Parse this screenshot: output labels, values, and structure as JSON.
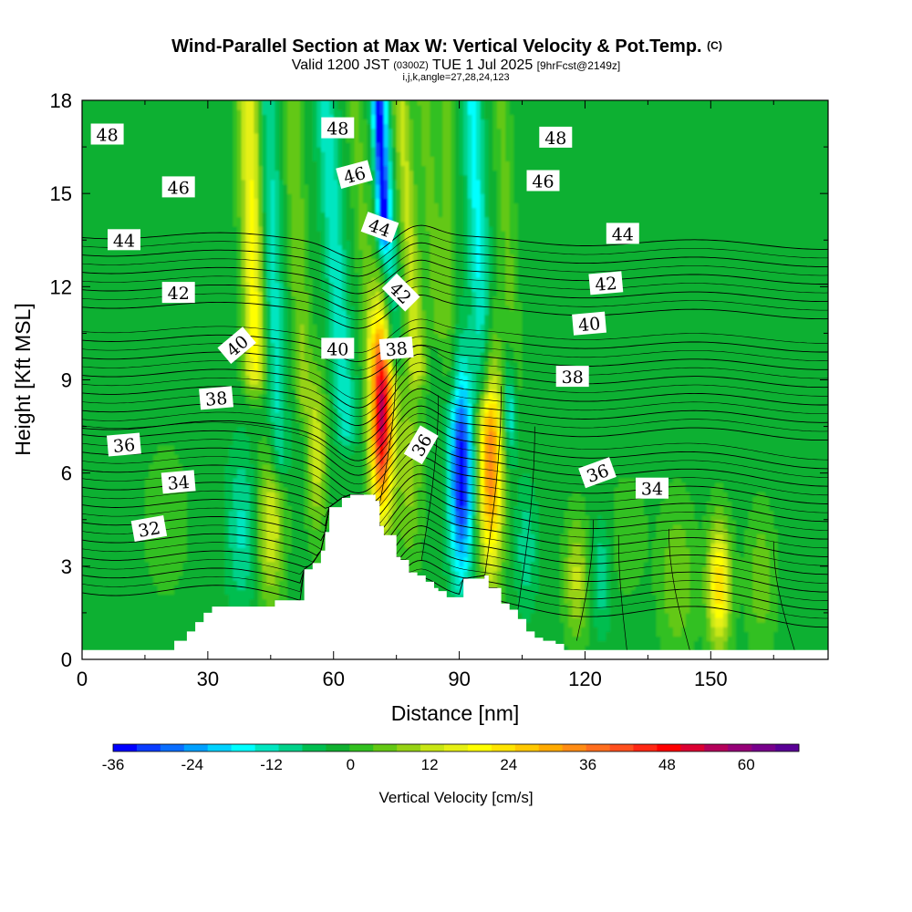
{
  "chart_data": {
    "type": "heatmap",
    "title": "Wind-Parallel Section at Max W: Vertical Velocity & Pot.Temp.",
    "title_mark": "(C)",
    "subtitle": {
      "prefix": "Valid 1200 JST",
      "utc": "(0300Z)",
      "date": "TUE 1 Jul 2025",
      "forecast": "[9hrFcst@2149z]"
    },
    "subtitle2": "i,j,k,angle=27,28,24,123",
    "xlabel": "Distance [nm]",
    "ylabel": "Height [Kft MSL]",
    "xlim": [
      0,
      178
    ],
    "ylim": [
      0,
      18
    ],
    "x_ticks": [
      0,
      30,
      60,
      90,
      120,
      150
    ],
    "y_ticks": [
      0,
      3,
      6,
      9,
      12,
      15,
      18
    ],
    "colorbar": {
      "label": "Vertical Velocity [cm/s]",
      "min": -36,
      "max": 68,
      "step": 4,
      "tick_values": [
        -36,
        -24,
        -12,
        0,
        12,
        24,
        36,
        48,
        60
      ],
      "tick_labels": [
        "-36",
        "-24",
        "-12",
        "0",
        "12",
        "24",
        "36",
        "48",
        "60"
      ],
      "colors": [
        "#0000ff",
        "#0a3cff",
        "#0a6eff",
        "#00a0ff",
        "#00d2ff",
        "#00ffff",
        "#00e6c0",
        "#00d28a",
        "#00be50",
        "#10b030",
        "#32c020",
        "#64c814",
        "#96d214",
        "#c8e614",
        "#e6f014",
        "#ffff00",
        "#ffe400",
        "#ffc800",
        "#ffaa00",
        "#ff8c14",
        "#ff6e1e",
        "#ff501e",
        "#ff2814",
        "#ff0000",
        "#dc0032",
        "#b4005a",
        "#960078",
        "#78008c",
        "#5a0096"
      ]
    },
    "theta_contours": {
      "levels": [
        32,
        34,
        36,
        38,
        40,
        42,
        44,
        46,
        48
      ],
      "labels": [
        {
          "text": "48",
          "x": 6,
          "y": 16.9,
          "angle": 0
        },
        {
          "text": "48",
          "x": 61,
          "y": 17.1,
          "angle": 0
        },
        {
          "text": "48",
          "x": 113,
          "y": 16.8,
          "angle": 0
        },
        {
          "text": "46",
          "x": 23,
          "y": 15.2,
          "angle": 0
        },
        {
          "text": "46",
          "x": 65,
          "y": 15.6,
          "angle": -15
        },
        {
          "text": "46",
          "x": 110,
          "y": 15.4,
          "angle": 0
        },
        {
          "text": "44",
          "x": 10,
          "y": 13.5,
          "angle": 0
        },
        {
          "text": "44",
          "x": 71,
          "y": 13.9,
          "angle": 20
        },
        {
          "text": "44",
          "x": 129,
          "y": 13.7,
          "angle": 0
        },
        {
          "text": "42",
          "x": 23,
          "y": 11.8,
          "angle": 0
        },
        {
          "text": "42",
          "x": 76,
          "y": 11.8,
          "angle": 45
        },
        {
          "text": "42",
          "x": 125,
          "y": 12.1,
          "angle": -5
        },
        {
          "text": "40",
          "x": 37,
          "y": 10.1,
          "angle": -40
        },
        {
          "text": "40",
          "x": 61,
          "y": 10.0,
          "angle": 0
        },
        {
          "text": "40",
          "x": 121,
          "y": 10.8,
          "angle": -5
        },
        {
          "text": "38",
          "x": 75,
          "y": 10.0,
          "angle": -5
        },
        {
          "text": "38",
          "x": 32,
          "y": 8.4,
          "angle": -5
        },
        {
          "text": "38",
          "x": 117,
          "y": 9.1,
          "angle": 0
        },
        {
          "text": "36",
          "x": 10,
          "y": 6.9,
          "angle": -5
        },
        {
          "text": "36",
          "x": 81,
          "y": 6.9,
          "angle": -60
        },
        {
          "text": "36",
          "x": 123,
          "y": 6.0,
          "angle": -20
        },
        {
          "text": "34",
          "x": 23,
          "y": 5.7,
          "angle": -5
        },
        {
          "text": "34",
          "x": 136,
          "y": 5.5,
          "angle": 0
        },
        {
          "text": "32",
          "x": 16,
          "y": 4.2,
          "angle": -10
        }
      ]
    },
    "vertical_velocity_features": [
      {
        "x": 71.5,
        "z": 8.0,
        "sx": 1.9,
        "sz": 2.3,
        "w": 64
      },
      {
        "x": 97.5,
        "z": 6.3,
        "sx": 2.0,
        "sz": 2.5,
        "w": 42
      },
      {
        "x": 90.5,
        "z": 6.0,
        "sx": 2.0,
        "sz": 2.4,
        "w": -38
      },
      {
        "x": 102,
        "z": 8.3,
        "sx": 1.2,
        "sz": 1.3,
        "w": -16
      },
      {
        "x": 78,
        "z": 6.3,
        "sx": 2.2,
        "sz": 2.3,
        "w": 12
      },
      {
        "x": 56,
        "z": 6.7,
        "sx": 1.6,
        "sz": 1.8,
        "w": 17
      },
      {
        "x": 45,
        "z": 4.3,
        "sx": 2.2,
        "sz": 1.8,
        "w": 18
      },
      {
        "x": 38,
        "z": 4.2,
        "sx": 2.4,
        "sz": 1.8,
        "w": -11
      },
      {
        "x": 152,
        "z": 2.4,
        "sx": 1.9,
        "sz": 1.4,
        "w": 30
      },
      {
        "x": 118,
        "z": 2.6,
        "sx": 2.0,
        "sz": 1.4,
        "w": 15
      },
      {
        "x": 124,
        "z": 2.7,
        "sx": 1.6,
        "sz": 1.2,
        "w": -10
      },
      {
        "x": 106,
        "z": 3.6,
        "sx": 1.8,
        "sz": 1.4,
        "w": -9
      },
      {
        "x": 142,
        "z": 2.6,
        "sx": 3.0,
        "sz": 1.8,
        "w": 10
      },
      {
        "x": 162,
        "z": 2.6,
        "sx": 2.5,
        "sz": 1.6,
        "w": 9
      },
      {
        "x": 130,
        "z": 4.0,
        "sx": 3.0,
        "sz": 1.3,
        "w": 6
      },
      {
        "x": 20,
        "z": 4.5,
        "sx": 4.0,
        "sz": 1.8,
        "w": 5
      }
    ],
    "wave_bands": [
      {
        "x0": 41,
        "x1": 41,
        "z0": 9.2,
        "z1": 18,
        "sx": 1.8,
        "w": 12
      },
      {
        "x0": 41.5,
        "x1": 39,
        "z0": 9.5,
        "z1": 18,
        "sx": 1.8,
        "w": 12
      },
      {
        "x0": 47,
        "x1": 44,
        "z0": 6.5,
        "z1": 18,
        "sx": 1.7,
        "w": -12
      },
      {
        "x0": 53,
        "x1": 50,
        "z0": 8.5,
        "z1": 18,
        "sx": 1.5,
        "w": 10
      },
      {
        "x0": 63,
        "x1": 58,
        "z0": 7.5,
        "z1": 18,
        "sx": 1.8,
        "w": -13
      },
      {
        "x0": 69,
        "x1": 65,
        "z0": 10,
        "z1": 18,
        "sx": 1.5,
        "w": 7
      },
      {
        "x0": 74,
        "x1": 71.5,
        "z0": 10,
        "z1": 18,
        "sx": 1.5,
        "w": -16
      },
      {
        "x0": 72,
        "x1": 70.5,
        "z0": 14,
        "z1": 18,
        "sx": 0.9,
        "w": -28
      },
      {
        "x0": 80,
        "x1": 76,
        "z0": 9.5,
        "z1": 18,
        "sx": 1.6,
        "w": 15
      },
      {
        "x0": 85,
        "x1": 81.5,
        "z0": 11,
        "z1": 18,
        "sx": 1.3,
        "w": 8
      },
      {
        "x0": 96,
        "x1": 93,
        "z0": 9,
        "z1": 18,
        "sx": 1.7,
        "w": -15
      },
      {
        "x0": 103,
        "x1": 100,
        "z0": 9,
        "z1": 18,
        "sx": 1.5,
        "w": 7
      },
      {
        "x0": 88,
        "x1": 87,
        "z0": 9,
        "z1": 13,
        "sx": 1.4,
        "w": 7
      }
    ],
    "terrain": [
      [
        0,
        0.3
      ],
      [
        20,
        0.3
      ],
      [
        22,
        0.6
      ],
      [
        25,
        0.9
      ],
      [
        27,
        1.2
      ],
      [
        29,
        1.5
      ],
      [
        31,
        1.7
      ],
      [
        45,
        1.7
      ],
      [
        46,
        1.9
      ],
      [
        52,
        1.9
      ],
      [
        53,
        2.9
      ],
      [
        55,
        3.1
      ],
      [
        57,
        3.5
      ],
      [
        58,
        4.1
      ],
      [
        59,
        4.9
      ],
      [
        62,
        5.2
      ],
      [
        64,
        5.3
      ],
      [
        67,
        5.3
      ],
      [
        70,
        5.1
      ],
      [
        71,
        4.3
      ],
      [
        72,
        4.0
      ],
      [
        75,
        3.3
      ],
      [
        76,
        3.2
      ],
      [
        77,
        3.2
      ],
      [
        78,
        2.8
      ],
      [
        80,
        2.7
      ],
      [
        82,
        2.5
      ],
      [
        84,
        2.3
      ],
      [
        85,
        2.2
      ],
      [
        87,
        2.0
      ],
      [
        90,
        2.0
      ],
      [
        91,
        2.6
      ],
      [
        96,
        2.7
      ],
      [
        97,
        2.3
      ],
      [
        99,
        2.3
      ],
      [
        100,
        1.8
      ],
      [
        102,
        1.6
      ],
      [
        104,
        1.3
      ],
      [
        106,
        0.9
      ],
      [
        108,
        0.7
      ],
      [
        110,
        0.6
      ],
      [
        113,
        0.5
      ],
      [
        115,
        0.3
      ],
      [
        178,
        0.3
      ]
    ]
  }
}
